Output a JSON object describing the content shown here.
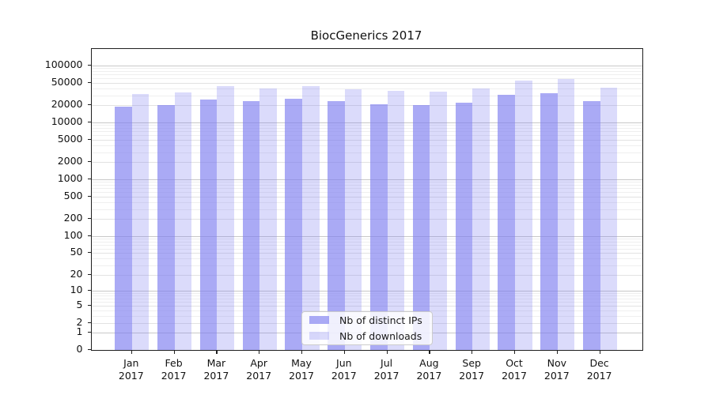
{
  "title": "BiocGenerics 2017",
  "chart_data": {
    "type": "bar",
    "title": "BiocGenerics 2017",
    "categories": [
      "Jan",
      "Feb",
      "Mar",
      "Apr",
      "May",
      "Jun",
      "Jul",
      "Aug",
      "Sep",
      "Oct",
      "Nov",
      "Dec"
    ],
    "category_year": "2017",
    "series": [
      {
        "name": "Nb of distinct IPs",
        "values": [
          19000,
          20000,
          25000,
          24000,
          26500,
          23500,
          21200,
          20200,
          22000,
          31000,
          33000,
          24000
        ],
        "fill": "rgba(125,125,240,0.65)",
        "solid_hex": "#aaaaf5"
      },
      {
        "name": "Nb of downloads",
        "values": [
          32000,
          34000,
          43000,
          39000,
          43500,
          38200,
          36400,
          34900,
          39000,
          54000,
          59000,
          40500
        ],
        "fill": "rgba(125,125,240,0.28)",
        "solid_hex": "#dbdbfb"
      }
    ],
    "yaxis": {
      "ticks": [
        0,
        1,
        2,
        5,
        10,
        20,
        50,
        100,
        200,
        500,
        1000,
        2000,
        5000,
        10000,
        20000,
        50000,
        100000
      ],
      "max": 200000,
      "scale": "log10(1+v)"
    },
    "grid": true,
    "legend": {
      "position": "bottom-center",
      "entries": [
        "Nb of distinct IPs",
        "Nb of downloads"
      ]
    }
  }
}
